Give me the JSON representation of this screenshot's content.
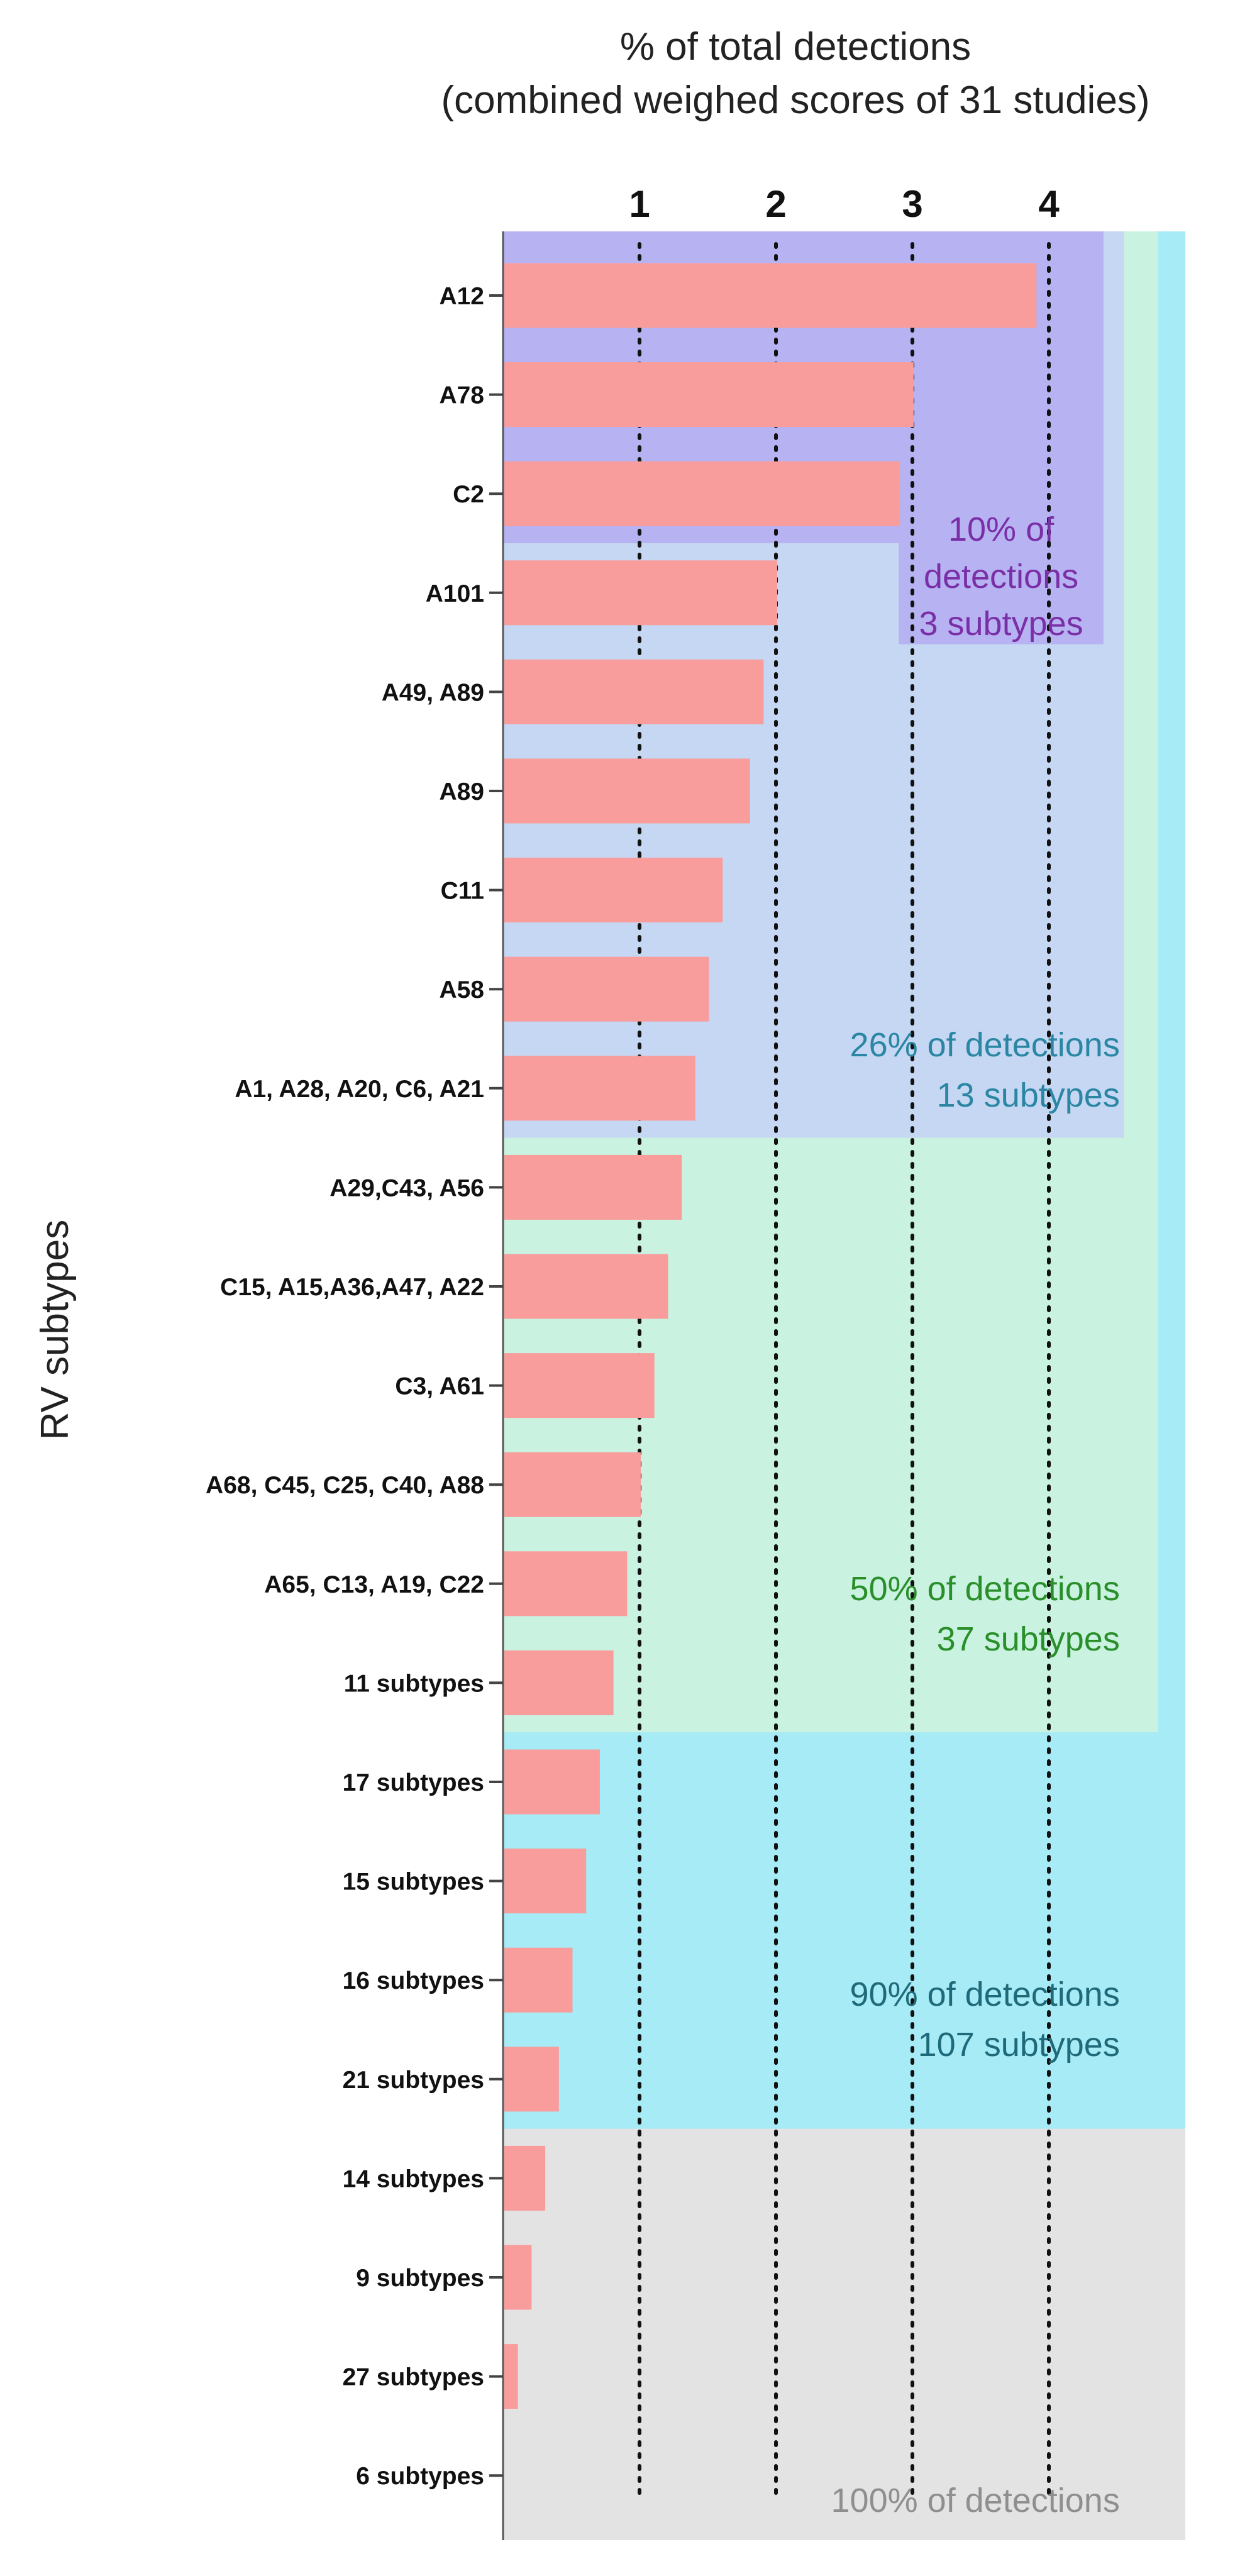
{
  "chart_data": {
    "type": "bar",
    "orientation": "horizontal",
    "title": "% of total detections",
    "subtitle": "(combined weighed scores of 31 studies)",
    "xlabel": "",
    "ylabel": "RV subtypes",
    "xlim": [
      0,
      5
    ],
    "x_ticks": [
      "1",
      "2",
      "3",
      "4"
    ],
    "grid": "dotted vertical lines",
    "categories": [
      "A12",
      "A78",
      "C2",
      "A101",
      "A49, A89",
      "A89",
      "C11",
      "A58",
      "A1, A28, A20, C6, A21",
      "A29,C43, A56",
      "C15, A15,A36,A47, A22",
      "C3, A61",
      "A68, C45, C25, C40, A88",
      "A65, C13, A19, C22",
      "11 subtypes",
      "17 subtypes",
      "15 subtypes",
      "16 subtypes",
      "21 subtypes",
      "14 subtypes",
      "9 subtypes",
      "27 subtypes",
      "6 subtypes"
    ],
    "values": [
      3.9,
      3.0,
      2.9,
      2.0,
      1.9,
      1.8,
      1.6,
      1.5,
      1.4,
      1.3,
      1.2,
      1.1,
      1.0,
      0.9,
      0.8,
      0.7,
      0.6,
      0.5,
      0.4,
      0.3,
      0.2,
      0.1,
      0.0
    ],
    "bar_color": "#f89c9c",
    "regions": [
      {
        "name": "100pct",
        "lines": [
          "100% of detections"
        ],
        "first_row": 0,
        "last_row": 22,
        "right": 5.0,
        "fill": "#e3e3e3",
        "text_color": "#8f8f8f"
      },
      {
        "name": "90pct",
        "lines": [
          "90% of detections",
          "107 subtypes"
        ],
        "first_row": 0,
        "last_row": 18,
        "right": 5.0,
        "fill": "#a6ebf5",
        "text_color": "#1f6a7a"
      },
      {
        "name": "50pct",
        "lines": [
          "50% of detections",
          "37 subtypes"
        ],
        "first_row": 0,
        "last_row": 14,
        "right": 4.8,
        "fill": "#c9f2e0",
        "text_color": "#2a8f2a"
      },
      {
        "name": "26pct",
        "lines": [
          "26% of detections",
          "13 subtypes"
        ],
        "first_row": 0,
        "last_row": 8,
        "right": 4.55,
        "fill": "#c5d7f2",
        "text_color": "#2a86a3"
      },
      {
        "name": "10pct",
        "lines": [
          "10% of",
          "detections",
          "3 subtypes"
        ],
        "first_row": 0,
        "last_row": 2,
        "right": 4.4,
        "fill": "#b7b2f2",
        "text_color": "#7a2fa6",
        "label_extends_to_row": 3
      }
    ]
  }
}
